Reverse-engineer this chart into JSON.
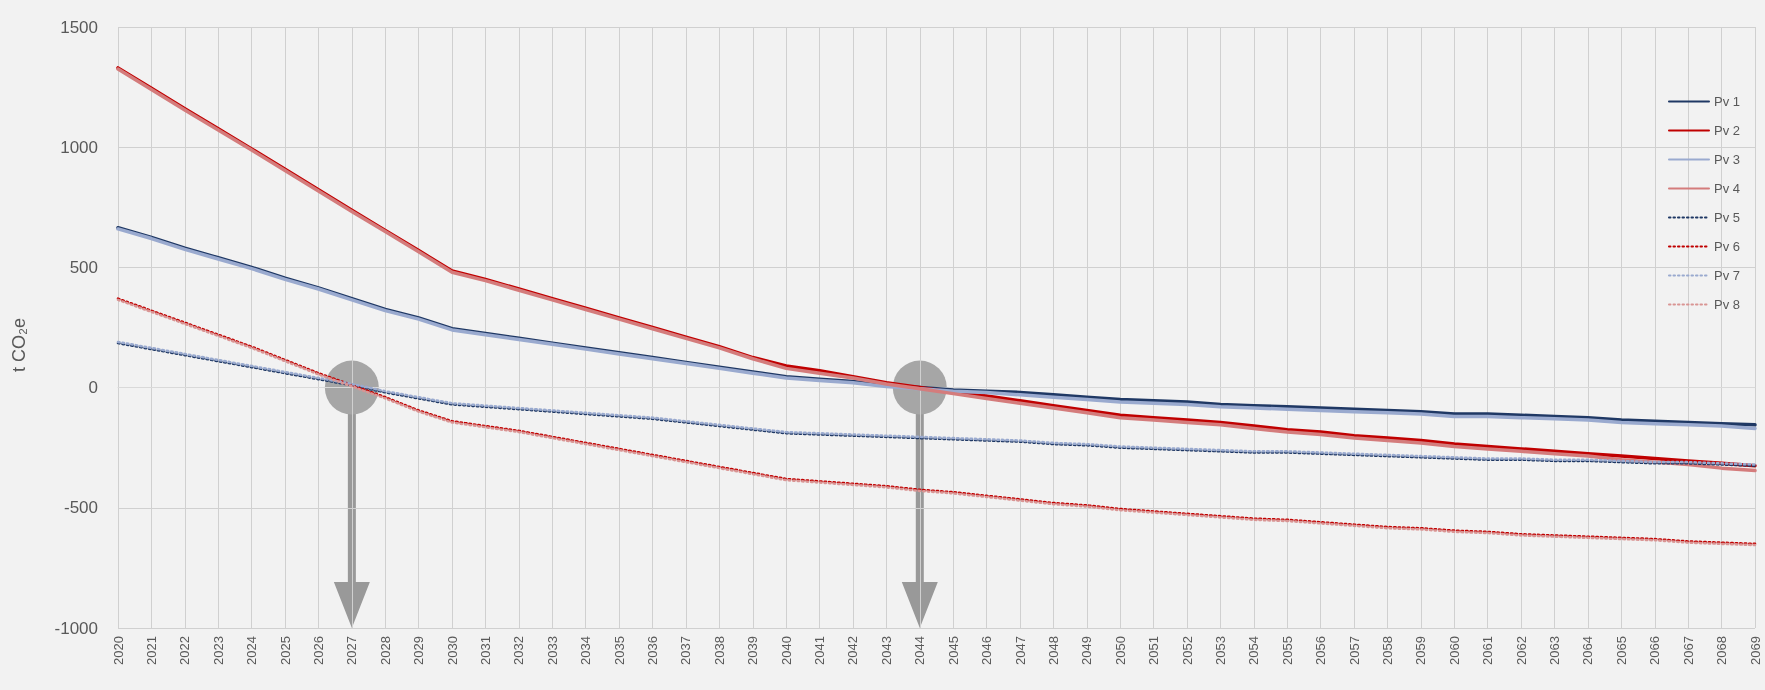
{
  "chart_data": {
    "type": "line",
    "ylabel": "t CO₂e",
    "categories": [
      "2020",
      "2021",
      "2022",
      "2023",
      "2024",
      "2025",
      "2026",
      "2027",
      "2028",
      "2029",
      "2030",
      "2031",
      "2032",
      "2033",
      "2034",
      "2035",
      "2036",
      "2037",
      "2038",
      "2039",
      "2040",
      "2041",
      "2042",
      "2043",
      "2044",
      "2045",
      "2046",
      "2047",
      "2048",
      "2049",
      "2050",
      "2051",
      "2052",
      "2053",
      "2054",
      "2055",
      "2056",
      "2057",
      "2058",
      "2059",
      "2060",
      "2061",
      "2062",
      "2063",
      "2064",
      "2065",
      "2066",
      "2067",
      "2068",
      "2069"
    ],
    "series": [
      {
        "name": "Pv 1",
        "color": "#1f3864",
        "line_style": "solid",
        "values": [
          665,
          625,
          580,
          540,
          500,
          455,
          415,
          370,
          325,
          290,
          245,
          225,
          205,
          185,
          165,
          145,
          125,
          105,
          85,
          65,
          45,
          35,
          25,
          10,
          0,
          -10,
          -15,
          -20,
          -30,
          -40,
          -50,
          -55,
          -60,
          -70,
          -75,
          -80,
          -85,
          -90,
          -95,
          -100,
          -110,
          -110,
          -115,
          -120,
          -125,
          -135,
          -140,
          -145,
          -150,
          -155
        ]
      },
      {
        "name": "Pv 2",
        "color": "#c00000",
        "line_style": "solid",
        "values": [
          1330,
          1245,
          1160,
          1077,
          993,
          908,
          823,
          738,
          654,
          570,
          485,
          450,
          410,
          370,
          330,
          290,
          250,
          210,
          170,
          125,
          90,
          70,
          45,
          20,
          0,
          -20,
          -35,
          -55,
          -75,
          -95,
          -115,
          -125,
          -135,
          -145,
          -160,
          -175,
          -185,
          -200,
          -210,
          -220,
          -235,
          -245,
          -255,
          -265,
          -275,
          -285,
          -295,
          -305,
          -315,
          -325
        ]
      },
      {
        "name": "Pv 3",
        "color": "#9aaacf",
        "line_style": "solid",
        "values": [
          660,
          620,
          575,
          535,
          495,
          450,
          410,
          365,
          320,
          285,
          240,
          220,
          200,
          180,
          160,
          140,
          120,
          100,
          80,
          60,
          40,
          30,
          20,
          5,
          -5,
          -15,
          -20,
          -30,
          -40,
          -50,
          -60,
          -65,
          -70,
          -80,
          -85,
          -90,
          -95,
          -100,
          -105,
          -110,
          -120,
          -120,
          -125,
          -130,
          -135,
          -145,
          -150,
          -155,
          -160,
          -170
        ]
      },
      {
        "name": "Pv 4",
        "color": "#d47c7c",
        "line_style": "solid",
        "values": [
          1325,
          1240,
          1155,
          1072,
          988,
          903,
          818,
          733,
          649,
          565,
          480,
          445,
          405,
          365,
          325,
          285,
          245,
          205,
          165,
          120,
          80,
          60,
          40,
          15,
          -5,
          -25,
          -45,
          -65,
          -85,
          -105,
          -125,
          -135,
          -145,
          -155,
          -170,
          -185,
          -195,
          -210,
          -220,
          -230,
          -245,
          -255,
          -265,
          -275,
          -285,
          -300,
          -310,
          -320,
          -335,
          -345
        ]
      },
      {
        "name": "Pv 5",
        "color": "#1f3864",
        "line_style": "dotted",
        "values": [
          185,
          160,
          135,
          110,
          85,
          60,
          35,
          10,
          -20,
          -45,
          -70,
          -80,
          -90,
          -100,
          -110,
          -120,
          -130,
          -145,
          -160,
          -175,
          -190,
          -195,
          -200,
          -205,
          -210,
          -215,
          -220,
          -225,
          -235,
          -240,
          -250,
          -255,
          -260,
          -265,
          -270,
          -270,
          -275,
          -280,
          -285,
          -290,
          -295,
          -300,
          -300,
          -305,
          -305,
          -310,
          -315,
          -315,
          -320,
          -325
        ]
      },
      {
        "name": "Pv 6",
        "color": "#c00000",
        "line_style": "dotted",
        "values": [
          370,
          320,
          270,
          220,
          170,
          115,
          60,
          10,
          -40,
          -95,
          -140,
          -160,
          -180,
          -205,
          -230,
          -255,
          -280,
          -305,
          -330,
          -355,
          -380,
          -390,
          -400,
          -410,
          -425,
          -435,
          -450,
          -465,
          -480,
          -490,
          -505,
          -515,
          -525,
          -535,
          -545,
          -550,
          -560,
          -570,
          -580,
          -585,
          -595,
          -600,
          -610,
          -615,
          -620,
          -625,
          -630,
          -640,
          -645,
          -650
        ]
      },
      {
        "name": "Pv 7",
        "color": "#9aaacf",
        "line_style": "dotted",
        "values": [
          190,
          165,
          140,
          115,
          90,
          65,
          40,
          15,
          -15,
          -40,
          -65,
          -75,
          -85,
          -95,
          -105,
          -115,
          -125,
          -140,
          -155,
          -170,
          -185,
          -190,
          -195,
          -200,
          -205,
          -210,
          -215,
          -220,
          -230,
          -235,
          -245,
          -250,
          -255,
          -260,
          -265,
          -265,
          -270,
          -275,
          -280,
          -285,
          -290,
          -295,
          -295,
          -300,
          -300,
          -305,
          -310,
          -310,
          -315,
          -320
        ]
      },
      {
        "name": "Pv 8",
        "color": "#d99594",
        "line_style": "dotted",
        "values": [
          365,
          315,
          265,
          215,
          165,
          110,
          55,
          5,
          -45,
          -100,
          -145,
          -165,
          -185,
          -210,
          -235,
          -260,
          -285,
          -310,
          -335,
          -360,
          -385,
          -395,
          -405,
          -415,
          -430,
          -440,
          -455,
          -470,
          -485,
          -495,
          -510,
          -520,
          -530,
          -540,
          -550,
          -555,
          -565,
          -575,
          -585,
          -590,
          -600,
          -605,
          -615,
          -620,
          -625,
          -630,
          -635,
          -645,
          -650,
          -655
        ]
      }
    ],
    "ylim": [
      -1000,
      1500
    ],
    "yticks": [
      -1000,
      -500,
      0,
      500,
      1000,
      1500
    ],
    "grid": true,
    "legend": "right",
    "marker": "none"
  }
}
